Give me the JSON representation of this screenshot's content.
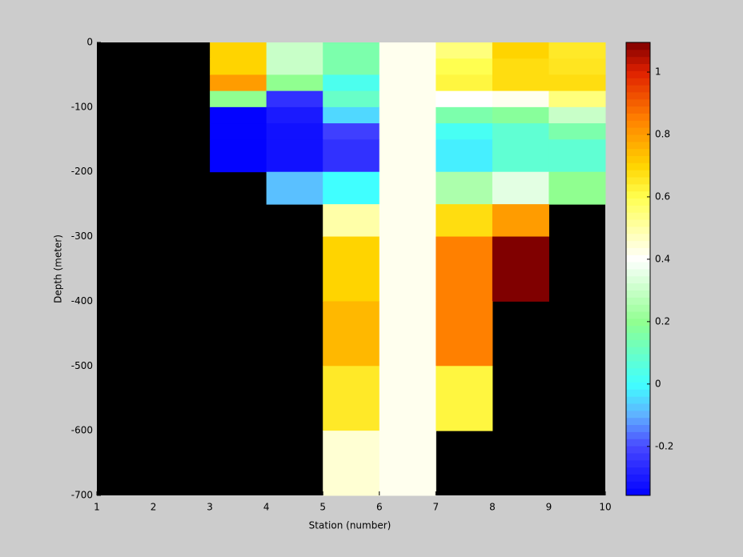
{
  "chart_data": {
    "type": "heatmap",
    "x_label": "Station (number)",
    "y_label": "Depth (meter)",
    "x_edges": [
      1,
      2,
      3,
      4,
      5,
      6,
      7,
      8,
      9,
      10
    ],
    "y_edges": [
      0,
      -25,
      -50,
      -75,
      -100,
      -125,
      -150,
      -200,
      -250,
      -300,
      -400,
      -500,
      -600,
      -700
    ],
    "values": [
      [
        null,
        null,
        0.7,
        0.3,
        0.15,
        0.42,
        0.55,
        0.7,
        0.65
      ],
      [
        null,
        null,
        0.7,
        0.3,
        0.15,
        0.42,
        0.6,
        0.68,
        0.66
      ],
      [
        null,
        null,
        0.8,
        0.2,
        0.03,
        0.42,
        0.62,
        0.68,
        0.68
      ],
      [
        null,
        null,
        0.2,
        -0.25,
        0.1,
        0.42,
        0.4,
        0.42,
        0.55
      ],
      [
        null,
        null,
        -0.35,
        -0.3,
        -0.05,
        0.42,
        0.15,
        0.18,
        0.3
      ],
      [
        null,
        null,
        -0.35,
        -0.32,
        -0.22,
        0.42,
        0.02,
        0.08,
        0.15
      ],
      [
        null,
        null,
        -0.35,
        -0.32,
        -0.25,
        0.42,
        -0.02,
        0.08,
        0.08
      ],
      [
        null,
        null,
        null,
        -0.08,
        0.0,
        0.42,
        0.25,
        0.35,
        0.2
      ],
      [
        null,
        null,
        null,
        null,
        0.5,
        0.42,
        0.68,
        0.8,
        null
      ],
      [
        null,
        null,
        null,
        null,
        0.7,
        0.42,
        0.85,
        1.1,
        null
      ],
      [
        null,
        null,
        null,
        null,
        0.75,
        0.42,
        0.85,
        null,
        null
      ],
      [
        null,
        null,
        null,
        null,
        0.65,
        0.42,
        0.62,
        null,
        null
      ],
      [
        null,
        null,
        null,
        null,
        0.45,
        0.42,
        null,
        null,
        null
      ]
    ],
    "xlim": [
      1,
      10
    ],
    "xticks": [
      1,
      2,
      3,
      4,
      5,
      6,
      7,
      8,
      9,
      10
    ],
    "ylim": [
      -700,
      0
    ],
    "yticks": [
      0,
      -100,
      -200,
      -300,
      -400,
      -500,
      -600,
      -700
    ],
    "clim": [
      -0.357,
      1.095
    ],
    "cticks": [
      -0.2,
      0,
      0.2,
      0.4,
      0.6,
      0.8,
      1
    ],
    "missing_color": "#000000",
    "colormap": [
      [
        -0.357,
        "#0000ff"
      ],
      [
        -0.2,
        "#4848ff"
      ],
      [
        -0.1,
        "#60b0ff"
      ],
      [
        0,
        "#40ffff"
      ],
      [
        0.2,
        "#90ff90"
      ],
      [
        0.4,
        "#ffffff"
      ],
      [
        0.6,
        "#ffff50"
      ],
      [
        0.7,
        "#ffd400"
      ],
      [
        0.85,
        "#ff8000"
      ],
      [
        1.0,
        "#e02000"
      ],
      [
        1.095,
        "#800000"
      ]
    ]
  }
}
